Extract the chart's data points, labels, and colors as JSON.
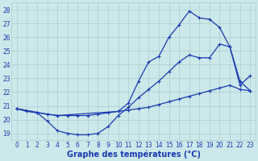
{
  "background_color": "#cce8ea",
  "grid_color": "#aacccc",
  "line_color": "#1a3ab0",
  "marker": "+",
  "xlabel": "Graphe des températures (°C)",
  "xlabel_fontsize": 7,
  "ylim": [
    18.5,
    28.5
  ],
  "xlim": [
    -0.5,
    23.5
  ],
  "yticks": [
    19,
    20,
    21,
    22,
    23,
    24,
    25,
    26,
    27,
    28
  ],
  "xticks": [
    0,
    1,
    2,
    3,
    4,
    5,
    6,
    7,
    8,
    9,
    10,
    11,
    12,
    13,
    14,
    15,
    16,
    17,
    18,
    19,
    20,
    21,
    22,
    23
  ],
  "curve1_x": [
    0,
    1,
    2,
    3,
    4,
    5,
    6,
    7,
    8,
    9,
    10,
    11,
    12,
    13,
    14,
    15,
    16,
    17,
    18,
    19,
    20,
    21,
    22,
    23
  ],
  "curve1_y": [
    20.8,
    20.6,
    20.5,
    20.4,
    20.3,
    20.3,
    20.3,
    20.3,
    20.4,
    20.5,
    20.6,
    20.7,
    20.8,
    20.9,
    21.1,
    21.3,
    21.5,
    21.7,
    21.9,
    22.1,
    22.3,
    22.5,
    22.2,
    22.1
  ],
  "curve2_x": [
    0,
    2,
    3,
    4,
    5,
    6,
    7,
    8,
    9,
    10,
    11,
    12,
    13,
    14,
    15,
    16,
    17,
    18,
    19,
    20,
    21,
    22,
    23
  ],
  "curve2_y": [
    20.8,
    20.5,
    19.9,
    19.2,
    19.0,
    18.9,
    18.9,
    19.0,
    19.5,
    20.3,
    20.9,
    21.6,
    22.2,
    22.8,
    23.5,
    24.2,
    24.7,
    24.5,
    24.5,
    25.5,
    25.3,
    22.5,
    23.2
  ],
  "curve3_x": [
    0,
    3,
    4,
    10,
    11,
    12,
    13,
    14,
    15,
    16,
    17,
    18,
    19,
    20,
    21,
    22,
    23
  ],
  "curve3_y": [
    20.8,
    20.4,
    20.3,
    20.6,
    21.2,
    22.8,
    24.2,
    24.6,
    26.0,
    26.9,
    27.9,
    27.4,
    27.3,
    26.7,
    25.3,
    22.8,
    22.1
  ]
}
